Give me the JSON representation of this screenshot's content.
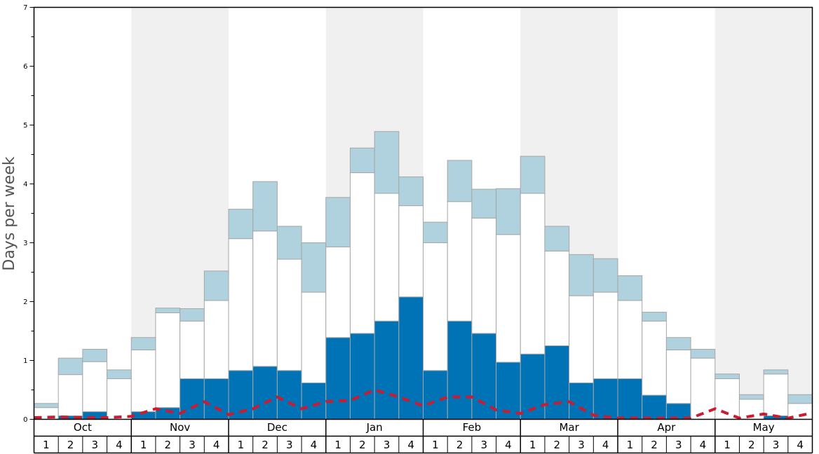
{
  "chart_data": {
    "type": "bar",
    "title": "",
    "xlabel": "",
    "ylabel": "Days per week",
    "ylim": [
      0,
      7
    ],
    "yticks": [
      "0",
      "1",
      "2",
      "3",
      "4",
      "5",
      "6",
      "7"
    ],
    "months": [
      "Oct",
      "Nov",
      "Dec",
      "Jan",
      "Feb",
      "Mar",
      "Apr",
      "May"
    ],
    "weeks": [
      "1",
      "2",
      "3",
      "4"
    ],
    "stacked": true,
    "series": [
      {
        "name": "dark blue",
        "color": "#0073b6",
        "values": [
          0.0,
          0.06,
          0.13,
          0.0,
          0.13,
          0.2,
          0.69,
          0.69,
          0.83,
          0.9,
          0.83,
          0.62,
          1.39,
          1.46,
          1.67,
          2.08,
          0.83,
          1.67,
          1.46,
          0.97,
          1.11,
          1.25,
          0.62,
          0.69,
          0.69,
          0.41,
          0.27,
          0.0,
          0.0,
          0.0,
          0.06,
          0.0
        ]
      },
      {
        "name": "white",
        "color": "#ffffff",
        "values": [
          0.2,
          0.7,
          0.85,
          0.69,
          1.05,
          1.61,
          0.98,
          1.33,
          2.24,
          2.3,
          1.89,
          1.54,
          1.54,
          2.73,
          2.17,
          1.55,
          2.17,
          2.03,
          1.96,
          2.17,
          2.73,
          1.61,
          1.48,
          1.47,
          1.33,
          1.26,
          0.91,
          1.04,
          0.69,
          0.34,
          0.71,
          0.27
        ]
      },
      {
        "name": "light blue",
        "color": "#afd2de",
        "values": [
          0.07,
          0.28,
          0.21,
          0.15,
          0.21,
          0.08,
          0.21,
          0.5,
          0.5,
          0.84,
          0.56,
          0.84,
          0.84,
          0.42,
          1.05,
          0.49,
          0.35,
          0.7,
          0.49,
          0.78,
          0.63,
          0.42,
          0.7,
          0.57,
          0.42,
          0.15,
          0.21,
          0.15,
          0.08,
          0.08,
          0.07,
          0.15
        ]
      },
      {
        "name": "average",
        "color": "#cc1a2e",
        "style": "dashed-line",
        "values": [
          0.03,
          0.04,
          0.03,
          0.03,
          0.05,
          0.18,
          0.1,
          0.3,
          0.08,
          0.18,
          0.38,
          0.18,
          0.3,
          0.32,
          0.5,
          0.38,
          0.23,
          0.38,
          0.38,
          0.16,
          0.1,
          0.25,
          0.3,
          0.07,
          0.02,
          0.02,
          0.02,
          0.02,
          0.18,
          0.02,
          0.09,
          0.02,
          0.11
        ]
      }
    ]
  }
}
